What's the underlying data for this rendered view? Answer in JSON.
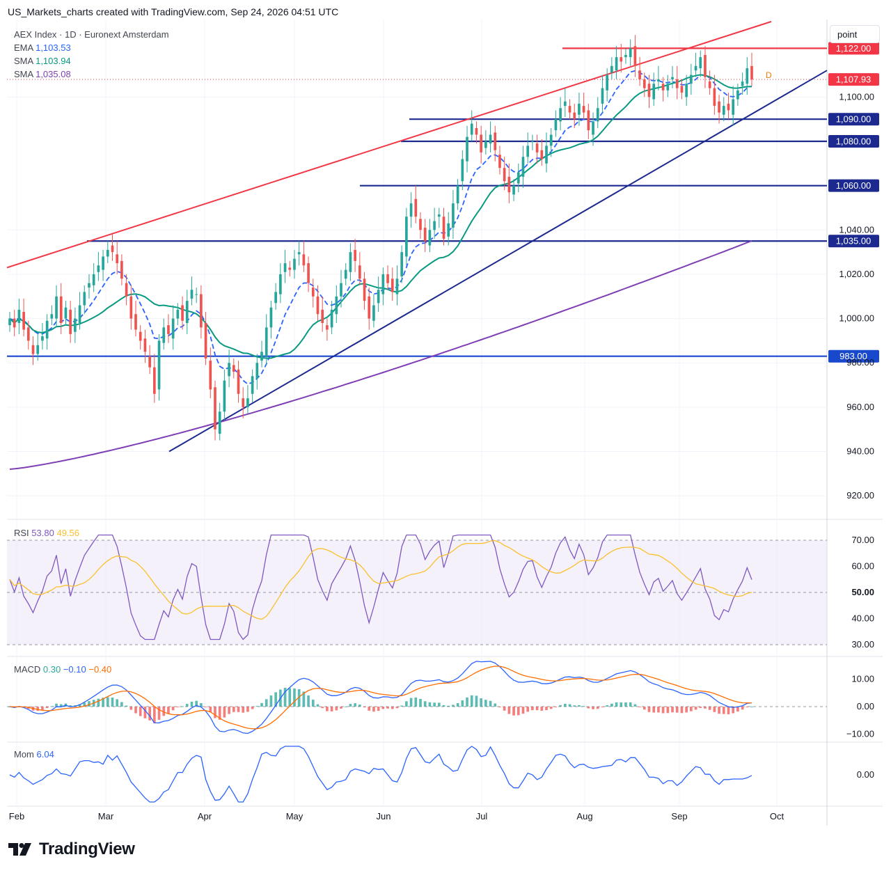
{
  "header": {
    "text": "US_Markets_charts created with TradingView.com, Sep 24, 2026 04:51 UTC"
  },
  "symbol": {
    "name": "AEX Index · 1D · Euronext Amsterdam",
    "ema_label": "EMA",
    "ema_value": "1,103.53",
    "sma1_label": "SMA",
    "sma1_value": "1,103.94",
    "sma2_label": "SMA",
    "sma2_value": "1,035.08",
    "dividend_marker": "D"
  },
  "scale_button": "point",
  "colors": {
    "up": "#26a69a",
    "down": "#ef5350",
    "ema": "#2962ff",
    "sma_fast": "#089981",
    "sma_slow": "#7e3fb5",
    "resistance": "#f23645",
    "support": "#1c2a8f",
    "rsi": "#7e57c2",
    "rsi_ma": "#fbc02d",
    "macd": "#2962ff",
    "signal": "#ff6d00",
    "mom": "#2962ff"
  },
  "price_axis": {
    "ticks": [
      920,
      940,
      960,
      980,
      1000,
      1020,
      1040,
      1100
    ],
    "tick_labels": [
      "920.00",
      "940.00",
      "960.00",
      "980.00",
      "1,000.00",
      "1,020.00",
      "1,040.00",
      "1,100.00"
    ],
    "ymin": 910,
    "ymax": 1135
  },
  "levels": [
    {
      "label": "1,122.00",
      "value": 1122,
      "color": "#f23645"
    },
    {
      "label": "1,107.93",
      "value": 1107.93,
      "color": "#f23645"
    },
    {
      "label": "1,090.00",
      "value": 1090,
      "color": "#1c2a8f"
    },
    {
      "label": "1,080.00",
      "value": 1080,
      "color": "#1c2a8f"
    },
    {
      "label": "1,060.00",
      "value": 1060,
      "color": "#1c2a8f"
    },
    {
      "label": "1,035.00",
      "value": 1035,
      "color": "#1c2a8f"
    },
    {
      "label": "983.00",
      "value": 983,
      "color": "#1848cc"
    }
  ],
  "x_axis": {
    "labels": [
      "Feb",
      "Mar",
      "Apr",
      "May",
      "Jun",
      "Jul",
      "Aug",
      "Sep",
      "Oct"
    ]
  },
  "rsi": {
    "label": "RSI",
    "value": "53.80",
    "ma_value": "49.56",
    "ticks": [
      "70.00",
      "60.00",
      "50.00",
      "40.00",
      "30.00"
    ]
  },
  "macd": {
    "label": "MACD",
    "hist": "0.30",
    "macd": "−0.10",
    "signal": "−0.40",
    "ticks": [
      "10.00",
      "0.00",
      "−10.00"
    ]
  },
  "mom": {
    "label": "Mom",
    "value": "6.04",
    "ticks": [
      "0.00"
    ]
  },
  "brand": "TradingView",
  "chart_data": {
    "type": "candlestick",
    "title": "AEX Index · 1D · Euronext Amsterdam",
    "x_range": [
      "Feb",
      "Oct"
    ],
    "y_range": [
      910,
      1135
    ],
    "closes": [
      1000,
      996,
      1004,
      995,
      990,
      984,
      988,
      992,
      999,
      1002,
      1010,
      998,
      1005,
      993,
      1000,
      1006,
      1012,
      1016,
      1020,
      1024,
      1028,
      1031,
      1030,
      1025,
      1018,
      1010,
      1000,
      995,
      990,
      985,
      978,
      966,
      990,
      996,
      993,
      1000,
      1004,
      999,
      1008,
      1013,
      1011,
      996,
      982,
      968,
      950,
      958,
      972,
      980,
      976,
      966,
      960,
      964,
      974,
      980,
      985,
      996,
      1005,
      1012,
      1020,
      1025,
      1022,
      1027,
      1030,
      1024,
      1016,
      1010,
      1002,
      998,
      995,
      1004,
      1010,
      1016,
      1022,
      1030,
      1026,
      1018,
      1008,
      1000,
      1006,
      1013,
      1020,
      1016,
      1012,
      1018,
      1030,
      1046,
      1052,
      1046,
      1040,
      1035,
      1040,
      1044,
      1047,
      1036,
      1043,
      1052,
      1060,
      1072,
      1082,
      1088,
      1083,
      1075,
      1080,
      1083,
      1076,
      1068,
      1062,
      1057,
      1060,
      1066,
      1073,
      1078,
      1080,
      1075,
      1072,
      1078,
      1083,
      1090,
      1095,
      1098,
      1093,
      1090,
      1097,
      1093,
      1085,
      1089,
      1095,
      1104,
      1110,
      1114,
      1118,
      1116,
      1119,
      1122,
      1114,
      1108,
      1104,
      1100,
      1106,
      1108,
      1103,
      1106,
      1109,
      1104,
      1102,
      1106,
      1110,
      1114,
      1118,
      1109,
      1104,
      1096,
      1093,
      1096,
      1094,
      1099,
      1103,
      1107,
      1113,
      1107.93
    ],
    "ema": {
      "last": 1103.53
    },
    "sma_fast": {
      "last": 1103.94
    },
    "sma_slow": {
      "last": 1035.08
    },
    "resistance_levels": [
      1122
    ],
    "support_levels": [
      1090,
      1080,
      1060,
      1035,
      983
    ],
    "rsi": {
      "value": 53.8,
      "ma": 49.56,
      "range": [
        30,
        70
      ]
    },
    "macd": {
      "hist": 0.3,
      "macd": -0.1,
      "signal": -0.4,
      "range": [
        -12,
        14
      ]
    },
    "momentum": {
      "value": 6.04
    }
  }
}
